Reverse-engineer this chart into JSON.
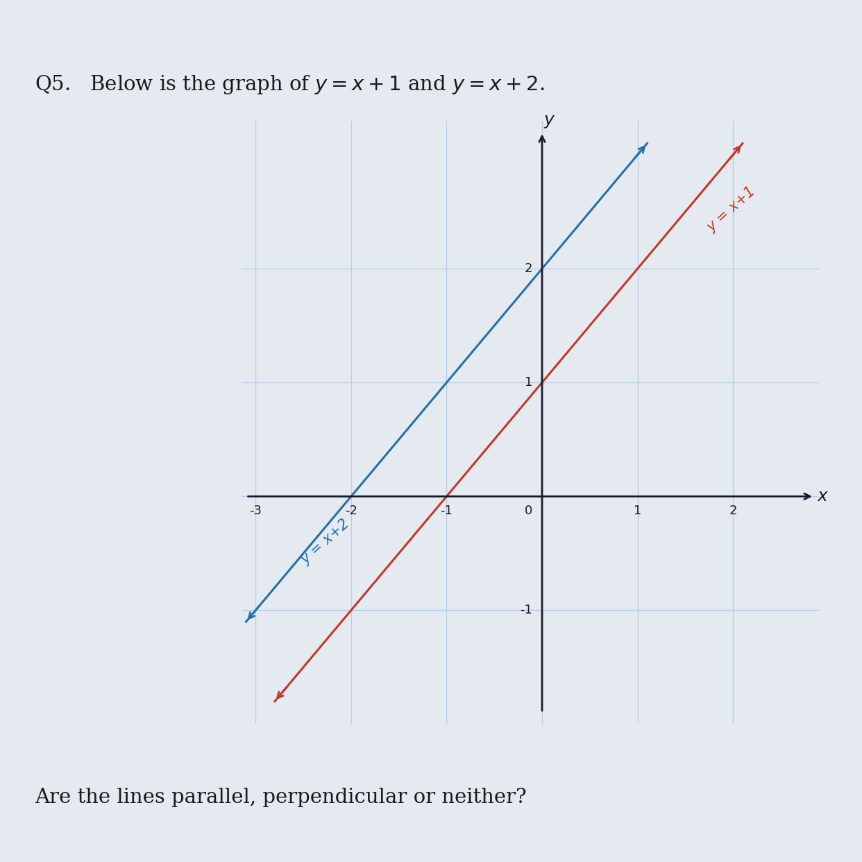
{
  "title_question": "Q5.   Below is the graph of $y = x + 1$ and $y = x + 2$.",
  "footer_question": "Are the lines parallel, perpendicular or neither?",
  "line1_label": "y = x+1",
  "line1_color": "#c0392b",
  "line1_slope": 1,
  "line1_intercept": 1,
  "line2_label": "y = x+2",
  "line2_color": "#2471a3",
  "line2_slope": 1,
  "line2_intercept": 2,
  "xmin": -3,
  "xmax": 2.5,
  "ymin": -1.5,
  "ymax": 2.8,
  "grid_color": "#b8cfe8",
  "axis_color": "#1a1a2e",
  "background_color": "#e8eef5",
  "fig_background": "#e5eaf0",
  "topbar_color": "#2c2c2c"
}
